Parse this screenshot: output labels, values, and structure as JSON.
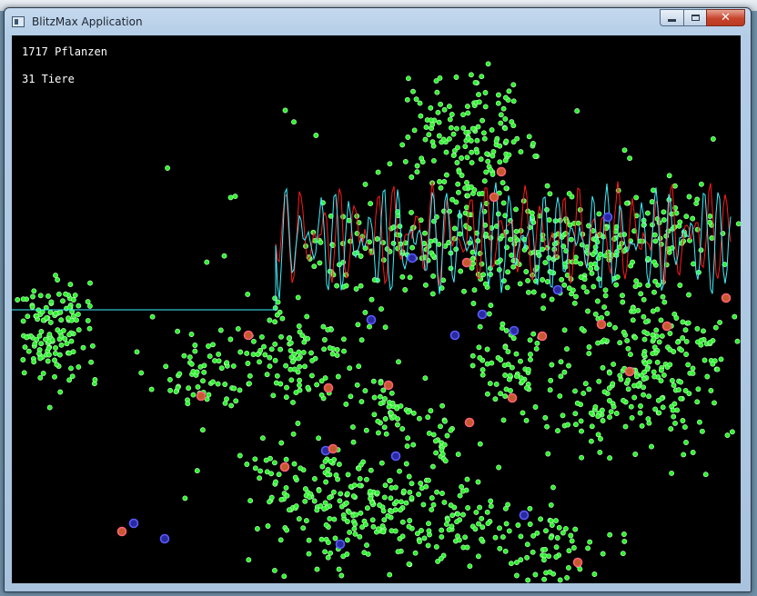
{
  "window": {
    "title": "BlitzMax Application"
  },
  "caption_buttons": {
    "close_glyph": "✕"
  },
  "hud": {
    "plants": "1717 Pflanzen",
    "animals": "31 Tiere"
  },
  "colors": {
    "plant_fill": "#2bf22b",
    "plant_outline": "#b6ffb6",
    "predator_ring": "#ff5d7a",
    "herbivore_ring": "#5a5aff",
    "graph_plants": "#3ff0ff",
    "graph_animals": "#ff1a1a"
  },
  "icons": {
    "app": "app-window-icon",
    "minimize": "minimize-icon",
    "maximize": "maximize-icon",
    "close": "close-icon"
  }
}
